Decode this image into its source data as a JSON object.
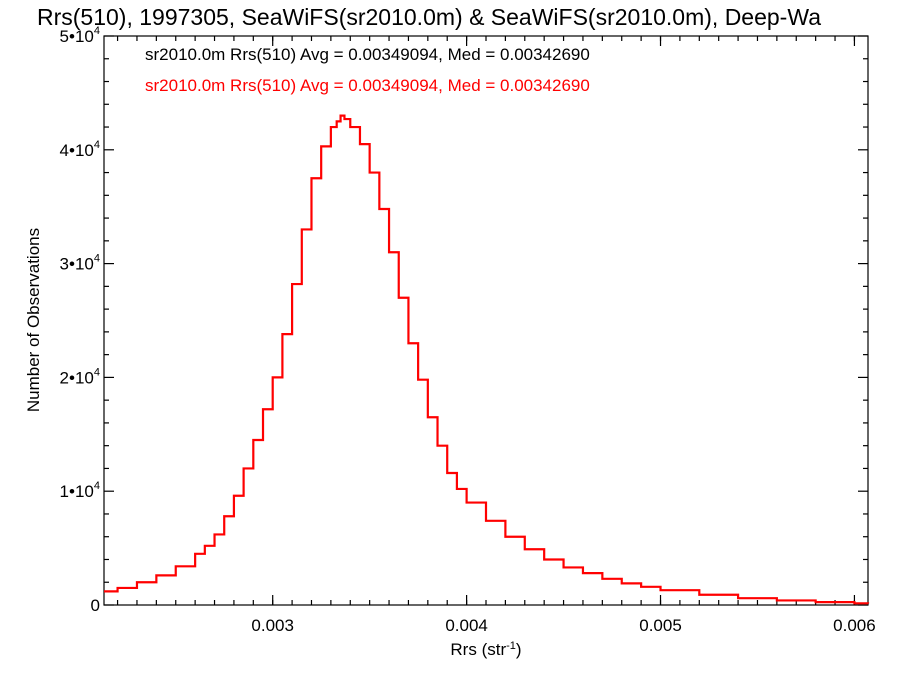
{
  "chart_data": {
    "type": "line",
    "title": "Rrs(510), 1997305, SeaWiFS(sr2010.0m) & SeaWiFS(sr2010.0m), Deep-Wa",
    "xlabel": "Rrs (str",
    "xlabel_exponent": "-1",
    "xlabel_suffix": ")",
    "ylabel": "Number of Observations",
    "xlim": [
      0.00213,
      0.00607
    ],
    "ylim": [
      0,
      50000
    ],
    "xticks": [
      {
        "value": 0.003,
        "label": "0.003"
      },
      {
        "value": 0.004,
        "label": "0.004"
      },
      {
        "value": 0.005,
        "label": "0.005"
      },
      {
        "value": 0.006,
        "label": "0.006"
      }
    ],
    "yticks": [
      {
        "value": 0,
        "mant": "0",
        "exp": ""
      },
      {
        "value": 10000,
        "mant": "1•10",
        "exp": "4"
      },
      {
        "value": 20000,
        "mant": "2•10",
        "exp": "4"
      },
      {
        "value": 30000,
        "mant": "3•10",
        "exp": "4"
      },
      {
        "value": 40000,
        "mant": "4•10",
        "exp": "4"
      },
      {
        "value": 50000,
        "mant": "5•10",
        "exp": "4"
      }
    ],
    "annotations": [
      {
        "text": "sr2010.0m Rrs(510) Avg = 0.00349094, Med = 0.00342690",
        "color": "#000000"
      },
      {
        "text": "sr2010.0m Rrs(510) Avg = 0.00349094, Med = 0.00342690",
        "color": "#ff0000"
      }
    ],
    "series": [
      {
        "color": "#ff0000",
        "step": true,
        "x": [
          0.00213,
          0.0022,
          0.0023,
          0.0024,
          0.0025,
          0.0026,
          0.00265,
          0.0027,
          0.00275,
          0.0028,
          0.00285,
          0.0029,
          0.00295,
          0.003,
          0.00305,
          0.0031,
          0.00315,
          0.0032,
          0.00325,
          0.0033,
          0.00333,
          0.00335,
          0.00337,
          0.0034,
          0.00345,
          0.0035,
          0.00355,
          0.0036,
          0.00365,
          0.0037,
          0.00375,
          0.0038,
          0.00385,
          0.0039,
          0.00395,
          0.004,
          0.0041,
          0.0042,
          0.0043,
          0.0044,
          0.0045,
          0.0046,
          0.0047,
          0.0048,
          0.0049,
          0.005,
          0.0052,
          0.0054,
          0.0056,
          0.0058,
          0.006,
          0.00607
        ],
        "y": [
          1200,
          1500,
          2000,
          2600,
          3400,
          4500,
          5200,
          6200,
          7800,
          9600,
          12000,
          14500,
          17200,
          20000,
          23800,
          28200,
          33000,
          37500,
          40300,
          42000,
          42500,
          43000,
          42700,
          42000,
          40500,
          38000,
          34800,
          31000,
          27000,
          23000,
          19800,
          16500,
          14000,
          11600,
          10200,
          9000,
          7400,
          6000,
          4900,
          4000,
          3300,
          2800,
          2300,
          1900,
          1600,
          1300,
          900,
          600,
          400,
          250,
          150,
          120
        ]
      }
    ]
  }
}
